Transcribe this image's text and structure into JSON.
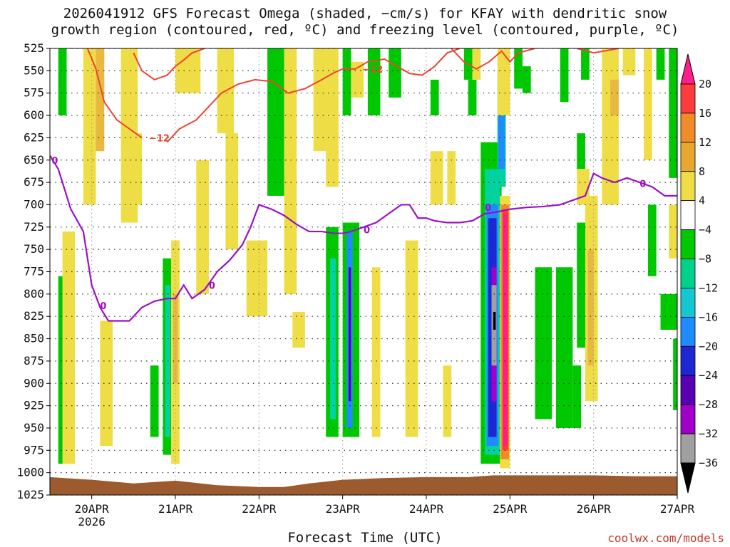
{
  "title_line1": "2026041912 GFS Forecast Omega (shaded, −cm/s) for KFAY with dendritic snow",
  "title_line2": "growth region (contoured, red, ºC) and freezing level (contoured, purple, ºC)",
  "x_axis_title": "Forecast Time (UTC)",
  "credit": "coolwx.com/models",
  "chart_data": {
    "type": "heatmap",
    "x_ticks": [
      {
        "day": 20.0,
        "label": "20APR",
        "sub": "2026"
      },
      {
        "day": 21.0,
        "label": "21APR"
      },
      {
        "day": 22.0,
        "label": "22APR"
      },
      {
        "day": 23.0,
        "label": "23APR"
      },
      {
        "day": 24.0,
        "label": "24APR"
      },
      {
        "day": 25.0,
        "label": "25APR"
      },
      {
        "day": 26.0,
        "label": "26APR"
      },
      {
        "day": 27.0,
        "label": "27APR"
      }
    ],
    "xlim_days": [
      19.5,
      27.0
    ],
    "y_ticks": [
      "525",
      "550",
      "575",
      "600",
      "625",
      "650",
      "675",
      "700",
      "725",
      "750",
      "775",
      "800",
      "825",
      "850",
      "875",
      "900",
      "925",
      "950",
      "975",
      "1000",
      "1025"
    ],
    "ylim_hpa": [
      525,
      1025
    ],
    "colorbar": {
      "labels": [
        "20",
        "16",
        "12",
        "8",
        "4",
        "−4",
        "−8",
        "−12",
        "−16",
        "−20",
        "−24",
        "−28",
        "−32",
        "−36"
      ],
      "colors": [
        "#ff1e8c",
        "#ff3c3c",
        "#ff7a1e",
        "#f0a030",
        "#e8c040",
        "#eeee55",
        "#ffffff",
        "#00c800",
        "#00d28a",
        "#14c8d2",
        "#1e8cff",
        "#1e28d2",
        "#5a00b4",
        "#a000c8",
        "#a0a0a0"
      ]
    },
    "freezing_level": {
      "label": "0",
      "color": "#9b11c8",
      "points": [
        [
          19.5,
          645
        ],
        [
          19.6,
          660
        ],
        [
          19.75,
          705
        ],
        [
          19.9,
          730
        ],
        [
          20.0,
          790
        ],
        [
          20.1,
          815
        ],
        [
          20.2,
          830
        ],
        [
          20.3,
          830
        ],
        [
          20.45,
          830
        ],
        [
          20.6,
          815
        ],
        [
          20.75,
          808
        ],
        [
          20.9,
          805
        ],
        [
          21.0,
          805
        ],
        [
          21.1,
          790
        ],
        [
          21.2,
          805
        ],
        [
          21.35,
          795
        ],
        [
          21.5,
          775
        ],
        [
          21.65,
          762
        ],
        [
          21.8,
          745
        ],
        [
          21.9,
          725
        ],
        [
          22.0,
          700
        ],
        [
          22.15,
          705
        ],
        [
          22.3,
          712
        ],
        [
          22.45,
          722
        ],
        [
          22.6,
          730
        ],
        [
          22.75,
          730
        ],
        [
          22.9,
          732
        ],
        [
          23.0,
          732
        ],
        [
          23.1,
          730
        ],
        [
          23.25,
          725
        ],
        [
          23.4,
          720
        ],
        [
          23.55,
          710
        ],
        [
          23.7,
          700
        ],
        [
          23.8,
          700
        ],
        [
          23.9,
          715
        ],
        [
          24.0,
          715
        ],
        [
          24.1,
          718
        ],
        [
          24.25,
          720
        ],
        [
          24.4,
          720
        ],
        [
          24.55,
          718
        ],
        [
          24.7,
          710
        ],
        [
          24.85,
          708
        ],
        [
          25.0,
          705
        ],
        [
          25.2,
          703
        ],
        [
          25.4,
          702
        ],
        [
          25.6,
          700
        ],
        [
          25.75,
          695
        ],
        [
          25.9,
          690
        ],
        [
          26.0,
          665
        ],
        [
          26.1,
          670
        ],
        [
          26.25,
          675
        ],
        [
          26.4,
          670
        ],
        [
          26.55,
          675
        ],
        [
          26.7,
          680
        ],
        [
          26.85,
          690
        ],
        [
          27.0,
          690
        ]
      ]
    },
    "dgz_contours": {
      "label": "−12",
      "color": "#ee4433",
      "lines": [
        [
          [
            19.95,
            525
          ],
          [
            20.05,
            548
          ],
          [
            20.15,
            585
          ],
          [
            20.3,
            605
          ],
          [
            20.45,
            615
          ],
          [
            20.6,
            625
          ]
        ],
        [
          [
            20.5,
            530
          ],
          [
            20.6,
            550
          ],
          [
            20.75,
            560
          ],
          [
            20.9,
            555
          ],
          [
            21.0,
            545
          ],
          [
            21.1,
            538
          ],
          [
            21.2,
            530
          ],
          [
            21.35,
            525
          ]
        ],
        [
          [
            20.9,
            630
          ],
          [
            21.05,
            615
          ],
          [
            21.25,
            605
          ],
          [
            21.4,
            590
          ],
          [
            21.55,
            575
          ],
          [
            21.75,
            565
          ],
          [
            21.95,
            560
          ],
          [
            22.15,
            562
          ],
          [
            22.35,
            575
          ],
          [
            22.55,
            570
          ],
          [
            22.75,
            560
          ],
          [
            22.9,
            552
          ],
          [
            23.0,
            548
          ],
          [
            23.15,
            548
          ],
          [
            23.3,
            540
          ],
          [
            23.5,
            537
          ],
          [
            23.65,
            545
          ],
          [
            23.8,
            553
          ],
          [
            23.95,
            555
          ],
          [
            24.1,
            545
          ],
          [
            24.25,
            530
          ],
          [
            24.4,
            525
          ]
        ],
        [
          [
            24.3,
            525
          ],
          [
            24.45,
            540
          ],
          [
            24.6,
            548
          ],
          [
            24.75,
            540
          ],
          [
            24.9,
            528
          ],
          [
            25.0,
            540
          ],
          [
            25.1,
            530
          ],
          [
            25.3,
            525
          ]
        ],
        [
          [
            25.8,
            525
          ],
          [
            26.0,
            530
          ],
          [
            26.3,
            525
          ]
        ]
      ],
      "label_positions": [
        [
          20.65,
          625
        ],
        [
          23.2,
          548
        ]
      ]
    },
    "omega_regions": [
      {
        "x0": 19.6,
        "x1": 19.7,
        "p0": 525,
        "p1": 600,
        "value": -8
      },
      {
        "x0": 19.6,
        "x1": 19.75,
        "p0": 780,
        "p1": 990,
        "value": -8
      },
      {
        "x0": 19.65,
        "x1": 19.8,
        "p0": 730,
        "p1": 990,
        "value": 6
      },
      {
        "x0": 19.9,
        "x1": 20.05,
        "p0": 525,
        "p1": 700,
        "value": 6
      },
      {
        "x0": 20.05,
        "x1": 20.15,
        "p0": 525,
        "p1": 640,
        "value": 10
      },
      {
        "x0": 20.1,
        "x1": 20.25,
        "p0": 830,
        "p1": 970,
        "value": 6
      },
      {
        "x0": 20.35,
        "x1": 20.55,
        "p0": 525,
        "p1": 720,
        "value": 6
      },
      {
        "x0": 20.5,
        "x1": 20.6,
        "p0": 620,
        "p1": 700,
        "value": 6
      },
      {
        "x0": 20.7,
        "x1": 20.8,
        "p0": 880,
        "p1": 960,
        "value": -8
      },
      {
        "x0": 20.85,
        "x1": 20.95,
        "p0": 760,
        "p1": 980,
        "value": -8
      },
      {
        "x0": 20.88,
        "x1": 20.94,
        "p0": 790,
        "p1": 960,
        "value": -12
      },
      {
        "x0": 20.95,
        "x1": 21.05,
        "p0": 740,
        "p1": 990,
        "value": 6
      },
      {
        "x0": 20.97,
        "x1": 21.03,
        "p0": 800,
        "p1": 900,
        "value": 10
      },
      {
        "x0": 21.0,
        "x1": 21.3,
        "p0": 525,
        "p1": 575,
        "value": 6
      },
      {
        "x0": 21.25,
        "x1": 21.4,
        "p0": 650,
        "p1": 800,
        "value": 6
      },
      {
        "x0": 21.5,
        "x1": 21.7,
        "p0": 525,
        "p1": 620,
        "value": 6
      },
      {
        "x0": 21.6,
        "x1": 21.75,
        "p0": 620,
        "p1": 750,
        "value": 6
      },
      {
        "x0": 21.85,
        "x1": 22.1,
        "p0": 740,
        "p1": 825,
        "value": 6
      },
      {
        "x0": 22.1,
        "x1": 22.3,
        "p0": 525,
        "p1": 690,
        "value": -8
      },
      {
        "x0": 22.3,
        "x1": 22.45,
        "p0": 525,
        "p1": 800,
        "value": 6
      },
      {
        "x0": 22.4,
        "x1": 22.55,
        "p0": 820,
        "p1": 860,
        "value": 6
      },
      {
        "x0": 22.65,
        "x1": 22.8,
        "p0": 525,
        "p1": 640,
        "value": 6
      },
      {
        "x0": 22.8,
        "x1": 22.95,
        "p0": 525,
        "p1": 680,
        "value": 6
      },
      {
        "x0": 22.8,
        "x1": 22.95,
        "p0": 725,
        "p1": 960,
        "value": -8
      },
      {
        "x0": 22.85,
        "x1": 22.92,
        "p0": 760,
        "p1": 940,
        "value": -12
      },
      {
        "x0": 23.0,
        "x1": 23.1,
        "p0": 525,
        "p1": 600,
        "value": -8
      },
      {
        "x0": 23.0,
        "x1": 23.2,
        "p0": 720,
        "p1": 960,
        "value": -8
      },
      {
        "x0": 23.05,
        "x1": 23.12,
        "p0": 730,
        "p1": 950,
        "value": -16
      },
      {
        "x0": 23.07,
        "x1": 23.1,
        "p0": 770,
        "p1": 920,
        "value": -24
      },
      {
        "x0": 23.1,
        "x1": 23.25,
        "p0": 540,
        "p1": 580,
        "value": 6
      },
      {
        "x0": 23.3,
        "x1": 23.45,
        "p0": 525,
        "p1": 600,
        "value": -8
      },
      {
        "x0": 23.35,
        "x1": 23.45,
        "p0": 770,
        "p1": 960,
        "value": 6
      },
      {
        "x0": 23.55,
        "x1": 23.7,
        "p0": 525,
        "p1": 580,
        "value": -8
      },
      {
        "x0": 23.75,
        "x1": 23.9,
        "p0": 740,
        "p1": 960,
        "value": 6
      },
      {
        "x0": 24.05,
        "x1": 24.2,
        "p0": 640,
        "p1": 700,
        "value": 6
      },
      {
        "x0": 24.05,
        "x1": 24.15,
        "p0": 560,
        "p1": 600,
        "value": -8
      },
      {
        "x0": 24.25,
        "x1": 24.35,
        "p0": 640,
        "p1": 700,
        "value": 6
      },
      {
        "x0": 24.2,
        "x1": 24.3,
        "p0": 880,
        "p1": 960,
        "value": 6
      },
      {
        "x0": 24.45,
        "x1": 24.55,
        "p0": 525,
        "p1": 560,
        "value": -8
      },
      {
        "x0": 24.5,
        "x1": 24.6,
        "p0": 560,
        "p1": 600,
        "value": -8
      },
      {
        "x0": 24.55,
        "x1": 24.65,
        "p0": 525,
        "p1": 560,
        "value": 6
      },
      {
        "x0": 24.65,
        "x1": 24.9,
        "p0": 630,
        "p1": 990,
        "value": -8
      },
      {
        "x0": 24.7,
        "x1": 24.88,
        "p0": 660,
        "p1": 980,
        "value": -12
      },
      {
        "x0": 24.72,
        "x1": 24.86,
        "p0": 700,
        "p1": 970,
        "value": -16
      },
      {
        "x0": 24.74,
        "x1": 24.84,
        "p0": 715,
        "p1": 960,
        "value": -20
      },
      {
        "x0": 24.78,
        "x1": 24.84,
        "p0": 770,
        "p1": 920,
        "value": -28
      },
      {
        "x0": 24.78,
        "x1": 24.84,
        "p0": 790,
        "p1": 880,
        "value": -32
      },
      {
        "x0": 24.8,
        "x1": 24.83,
        "p0": 820,
        "p1": 840,
        "value": -40
      },
      {
        "x0": 24.85,
        "x1": 24.95,
        "p0": 550,
        "p1": 680,
        "value": -12
      },
      {
        "x0": 24.86,
        "x1": 24.94,
        "p0": 580,
        "p1": 660,
        "value": -16
      },
      {
        "x0": 24.88,
        "x1": 25.0,
        "p0": 690,
        "p1": 995,
        "value": 6
      },
      {
        "x0": 24.89,
        "x1": 24.99,
        "p0": 700,
        "p1": 985,
        "value": 12
      },
      {
        "x0": 24.91,
        "x1": 24.98,
        "p0": 705,
        "p1": 975,
        "value": 18
      },
      {
        "x0": 24.92,
        "x1": 24.97,
        "p0": 710,
        "p1": 970,
        "value": 22
      },
      {
        "x0": 24.85,
        "x1": 25.0,
        "p0": 525,
        "p1": 600,
        "value": 6
      },
      {
        "x0": 25.05,
        "x1": 25.15,
        "p0": 525,
        "p1": 570,
        "value": -8
      },
      {
        "x0": 25.15,
        "x1": 25.25,
        "p0": 545,
        "p1": 575,
        "value": -8
      },
      {
        "x0": 25.3,
        "x1": 25.5,
        "p0": 770,
        "p1": 940,
        "value": -8
      },
      {
        "x0": 25.55,
        "x1": 25.75,
        "p0": 770,
        "p1": 950,
        "value": -8
      },
      {
        "x0": 25.6,
        "x1": 25.7,
        "p0": 525,
        "p1": 585,
        "value": -8
      },
      {
        "x0": 25.75,
        "x1": 25.85,
        "p0": 880,
        "p1": 950,
        "value": -8
      },
      {
        "x0": 25.8,
        "x1": 25.9,
        "p0": 620,
        "p1": 660,
        "value": -8
      },
      {
        "x0": 25.8,
        "x1": 25.95,
        "p0": 660,
        "p1": 700,
        "value": 6
      },
      {
        "x0": 25.8,
        "x1": 25.95,
        "p0": 720,
        "p1": 860,
        "value": -8
      },
      {
        "x0": 25.85,
        "x1": 25.95,
        "p0": 525,
        "p1": 560,
        "value": -8
      },
      {
        "x0": 25.9,
        "x1": 26.05,
        "p0": 690,
        "p1": 920,
        "value": 6
      },
      {
        "x0": 25.93,
        "x1": 26.0,
        "p0": 750,
        "p1": 880,
        "value": 10
      },
      {
        "x0": 26.1,
        "x1": 26.3,
        "p0": 525,
        "p1": 700,
        "value": 6
      },
      {
        "x0": 26.2,
        "x1": 26.3,
        "p0": 560,
        "p1": 600,
        "value": 10
      },
      {
        "x0": 26.35,
        "x1": 26.5,
        "p0": 525,
        "p1": 555,
        "value": 6
      },
      {
        "x0": 26.6,
        "x1": 26.7,
        "p0": 525,
        "p1": 650,
        "value": 6
      },
      {
        "x0": 26.65,
        "x1": 26.75,
        "p0": 700,
        "p1": 780,
        "value": -8
      },
      {
        "x0": 26.75,
        "x1": 26.85,
        "p0": 525,
        "p1": 560,
        "value": -8
      },
      {
        "x0": 26.8,
        "x1": 27.0,
        "p0": 800,
        "p1": 840,
        "value": -8
      },
      {
        "x0": 26.9,
        "x1": 27.0,
        "p0": 525,
        "p1": 670,
        "value": -8
      },
      {
        "x0": 26.9,
        "x1": 27.0,
        "p0": 700,
        "p1": 760,
        "value": 6
      },
      {
        "x0": 26.95,
        "x1": 27.0,
        "p0": 850,
        "p1": 930,
        "value": -8
      }
    ],
    "terrain_color": "#9c5a2f",
    "surface_pressure": [
      [
        19.5,
        1005
      ],
      [
        20.0,
        1008
      ],
      [
        20.5,
        1012
      ],
      [
        21.0,
        1009
      ],
      [
        21.5,
        1014
      ],
      [
        22.0,
        1016
      ],
      [
        22.3,
        1016
      ],
      [
        22.6,
        1012
      ],
      [
        23.0,
        1008
      ],
      [
        23.5,
        1006
      ],
      [
        24.0,
        1005
      ],
      [
        24.5,
        1005
      ],
      [
        24.8,
        1003
      ],
      [
        25.0,
        1003
      ],
      [
        25.5,
        1003
      ],
      [
        26.0,
        1003
      ],
      [
        26.5,
        1004
      ],
      [
        27.0,
        1004
      ]
    ]
  }
}
